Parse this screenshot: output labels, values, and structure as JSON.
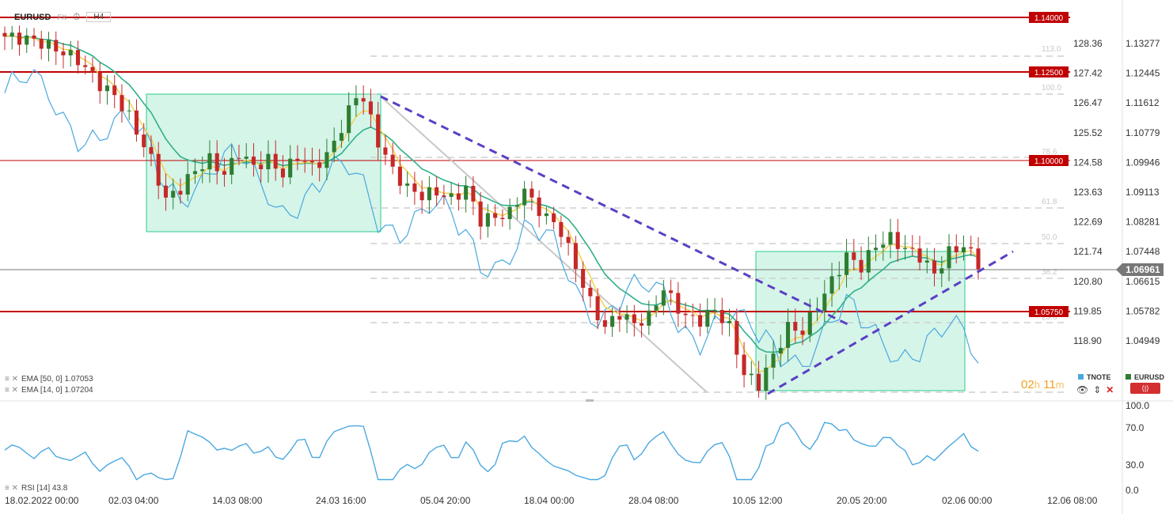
{
  "header": {
    "symbol": "EURUSD",
    "market": "FX",
    "clock_icon": "clock-icon",
    "timeframe": "H4"
  },
  "indicators": {
    "ema50": "EMA [50, 0] 1.07053",
    "ema14": "EMA [14, 0] 1.07204",
    "rsi": "RSI [14] 43.8"
  },
  "timer": {
    "hours": "02",
    "h": "h",
    "minutes": "11",
    "m": "m"
  },
  "legend": {
    "tnote": "TNOTE",
    "eurusd": "EURUSD"
  },
  "colors": {
    "up": "#2e7d32",
    "down": "#c62828",
    "ema14": "#f2d35a",
    "ema50": "#2fb08a",
    "tnote": "#4aa8e0",
    "level": "#c00000",
    "trend": "#5b3fc4",
    "box": "#2ecc8e"
  },
  "chart_data": [
    {
      "type": "candlestick",
      "symbol": "EURUSD",
      "timeframe": "H4",
      "x_ticks": [
        "18.02.2022  00:00",
        "02.03  04:00",
        "14.03  08:00",
        "24.03  16:00",
        "05.04  20:00",
        "18.04  00:00",
        "28.04  08:00",
        "10.05  12:00",
        "20.05  20:00",
        "02.06  00:00",
        "12.06  08:00"
      ],
      "y_right_ticks": [
        "1.13277",
        "1.12445",
        "1.11612",
        "1.10779",
        "1.09946",
        "1.09113",
        "1.08281",
        "1.07448",
        "1.06615",
        "1.05782",
        "1.04949"
      ],
      "y_left_ticks": [
        "128.36",
        "127.42",
        "126.47",
        "125.52",
        "124.58",
        "123.63",
        "122.69",
        "121.74",
        "120.80",
        "119.85",
        "118.90"
      ],
      "current_price": "1.06961",
      "levels": [
        {
          "label": "1.14000",
          "value": 1.14
        },
        {
          "label": "1.12500",
          "value": 1.125
        },
        {
          "label": "1.10000",
          "value": 1.1
        },
        {
          "label": "1.05750",
          "value": 1.0575
        }
      ],
      "fib_labels": [
        "113.0",
        "100.0",
        "78.6",
        "61.8",
        "50.0",
        "38.2",
        "23.6"
      ],
      "anchors": [
        [
          0,
          1.1345
        ],
        [
          4,
          1.1335
        ],
        [
          7,
          1.131
        ],
        [
          10,
          1.128
        ],
        [
          13,
          1.121
        ],
        [
          15,
          1.118
        ],
        [
          17,
          1.112
        ],
        [
          20,
          1.1
        ],
        [
          22,
          1.0888
        ],
        [
          24,
          1.092
        ],
        [
          26,
          1.097
        ],
        [
          28,
          1.1
        ],
        [
          30,
          1.096
        ],
        [
          32,
          1.102
        ],
        [
          34,
          1.098
        ],
        [
          36,
          1.1
        ],
        [
          38,
          1.096
        ],
        [
          40,
          1.101
        ],
        [
          42,
          1.098
        ],
        [
          44,
          1.101
        ],
        [
          46,
          1.109
        ],
        [
          48,
          1.118
        ],
        [
          49,
          1.117
        ],
        [
          51,
          1.105
        ],
        [
          53,
          1.097
        ],
        [
          55,
          1.092
        ],
        [
          57,
          1.09
        ],
        [
          59,
          1.091
        ],
        [
          61,
          1.089
        ],
        [
          63,
          1.092
        ],
        [
          65,
          1.083
        ],
        [
          67,
          1.084
        ],
        [
          69,
          1.085
        ],
        [
          71,
          1.092
        ],
        [
          72,
          1.088
        ],
        [
          74,
          1.084
        ],
        [
          76,
          1.08
        ],
        [
          78,
          1.07
        ],
        [
          80,
          1.06
        ],
        [
          82,
          1.053
        ],
        [
          84,
          1.057
        ],
        [
          86,
          1.054
        ],
        [
          88,
          1.056
        ],
        [
          90,
          1.064
        ],
        [
          91,
          1.061
        ],
        [
          93,
          1.056
        ],
        [
          95,
          1.055
        ],
        [
          97,
          1.058
        ],
        [
          99,
          1.053
        ],
        [
          101,
          1.04
        ],
        [
          103,
          1.037
        ],
        [
          105,
          1.045
        ],
        [
          107,
          1.053
        ],
        [
          109,
          1.052
        ],
        [
          111,
          1.059
        ],
        [
          113,
          1.066
        ],
        [
          115,
          1.073
        ],
        [
          117,
          1.07
        ],
        [
          119,
          1.076
        ],
        [
          121,
          1.078
        ],
        [
          123,
          1.075
        ],
        [
          125,
          1.073
        ],
        [
          127,
          1.068
        ],
        [
          129,
          1.074
        ],
        [
          131,
          1.076
        ],
        [
          133,
          1.071
        ]
      ],
      "series": [
        {
          "name": "EURUSD",
          "style": "candles"
        },
        {
          "name": "EMA [14, 0]",
          "last": 1.07204
        },
        {
          "name": "EMA [50, 0]",
          "last": 1.07053
        },
        {
          "name": "TNOTE",
          "style": "line"
        }
      ]
    },
    {
      "type": "line",
      "name": "RSI [14]",
      "last": 43.8,
      "y_ticks": [
        "100.0",
        "70.0",
        "30.0",
        "0.0"
      ],
      "ylim": [
        0,
        100
      ]
    }
  ]
}
